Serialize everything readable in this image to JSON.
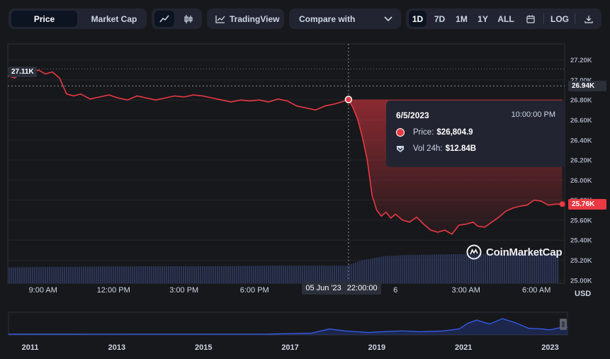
{
  "toolbar": {
    "metric_tabs": [
      {
        "label": "Price",
        "active": true
      },
      {
        "label": "Market Cap",
        "active": false
      }
    ],
    "chart_type_icons": [
      "line-chart-icon",
      "candlestick-icon"
    ],
    "tradingview_label": "TradingView",
    "compare_label": "Compare with",
    "ranges": [
      {
        "label": "1D",
        "active": true
      },
      {
        "label": "7D",
        "active": false
      },
      {
        "label": "1M",
        "active": false
      },
      {
        "label": "1Y",
        "active": false
      },
      {
        "label": "ALL",
        "active": false
      }
    ],
    "log_label": "LOG"
  },
  "tooltip": {
    "date": "6/5/2023",
    "time": "10:00:00 PM",
    "price_label": "Price:",
    "price_value": "$26,804.9",
    "vol_label": "Vol 24h:",
    "vol_value": "$12.84B"
  },
  "badges": {
    "high": "27.11K",
    "crosshair_price": "26.94K",
    "current_price": "25.76K",
    "crosshair_date": "05 Jun '23",
    "crosshair_time": "22:00:00"
  },
  "currency": "USD",
  "watermark": "CoinMarketCap",
  "colors": {
    "line": "#ea3943",
    "volume": "#2c3454",
    "nav_line": "#3861fb",
    "background": "#17181b",
    "panel": "#222531"
  },
  "chart_data": {
    "type": "line",
    "yaxis_ticks": [
      25.0,
      25.2,
      25.4,
      25.6,
      25.8,
      26.0,
      26.2,
      26.4,
      26.6,
      26.8,
      27.0,
      27.2
    ],
    "yaxis_tick_labels": [
      "25.00K",
      "25.20K",
      "25.40K",
      "25.60K",
      "25.80K",
      "26.00K",
      "26.20K",
      "26.40K",
      "26.60K",
      "26.80K",
      "27.00K",
      "27.20K"
    ],
    "ylim": [
      24.97,
      27.36
    ],
    "xlim": [
      7.5,
      31.2
    ],
    "x_tick_labels": [
      {
        "h": 9,
        "label": "9:00 AM"
      },
      {
        "h": 12,
        "label": "12:00 PM"
      },
      {
        "h": 15,
        "label": "3:00 PM"
      },
      {
        "h": 18,
        "label": "6:00 PM"
      },
      {
        "h": 24,
        "label": "6"
      },
      {
        "h": 27,
        "label": "3:00 AM"
      },
      {
        "h": 30,
        "label": "6:00 AM"
      }
    ],
    "crosshair_x": 22.0,
    "crosshair_y": 26.94,
    "highlight_x": 22.0,
    "highlight_y": 26.805,
    "high_value": 27.11,
    "last_value": 25.76,
    "reference_price": 26.805,
    "series": [
      {
        "x": [
          7.5,
          7.8,
          8.2,
          8.5,
          8.8,
          9.1,
          9.4,
          9.7,
          10.0,
          10.3,
          10.6,
          11.0,
          11.4,
          11.8,
          12.2,
          12.6,
          13.0,
          13.4,
          13.8,
          14.2,
          14.6,
          15.0,
          15.4,
          15.8,
          16.2,
          16.6,
          17.0,
          17.4,
          17.8,
          18.2,
          18.6,
          19.0,
          19.4,
          19.8,
          20.2,
          20.6,
          21.0,
          21.4,
          21.7,
          22.0,
          22.2,
          22.4,
          22.6,
          22.8,
          23.0,
          23.2,
          23.4,
          23.6,
          23.8,
          24.0,
          24.3,
          24.6,
          24.9,
          25.2,
          25.5,
          25.8,
          26.1,
          26.4,
          26.7,
          27.0,
          27.3,
          27.5,
          27.8,
          28.1,
          28.4,
          28.7,
          29.0,
          29.3,
          29.6,
          29.9,
          30.2,
          30.5,
          30.8,
          31.1
        ],
        "y": [
          27.04,
          27.02,
          27.08,
          27.06,
          27.1,
          27.06,
          27.08,
          27.02,
          26.86,
          26.84,
          26.86,
          26.81,
          26.83,
          26.85,
          26.82,
          26.8,
          26.84,
          26.82,
          26.8,
          26.82,
          26.84,
          26.83,
          26.85,
          26.84,
          26.82,
          26.8,
          26.78,
          26.8,
          26.79,
          26.8,
          26.78,
          26.81,
          26.79,
          26.74,
          26.72,
          26.7,
          26.74,
          26.76,
          26.78,
          26.805,
          26.72,
          26.6,
          26.42,
          26.2,
          25.85,
          25.7,
          25.64,
          25.68,
          25.62,
          25.66,
          25.6,
          25.58,
          25.63,
          25.56,
          25.5,
          25.48,
          25.5,
          25.46,
          25.55,
          25.56,
          25.58,
          25.54,
          25.53,
          25.58,
          25.63,
          25.69,
          25.72,
          25.74,
          25.75,
          25.8,
          25.79,
          25.75,
          25.76,
          25.76
        ]
      }
    ],
    "volume": {
      "x": [
        7.5,
        10,
        13,
        16,
        19,
        21.9,
        22.5,
        23.5,
        24.5,
        26,
        28,
        30,
        31.2
      ],
      "values": [
        0.28,
        0.29,
        0.3,
        0.3,
        0.31,
        0.31,
        0.4,
        0.48,
        0.5,
        0.51,
        0.52,
        0.53,
        0.53
      ]
    },
    "navigator": {
      "x_tick_labels": [
        {
          "year": 2011,
          "label": "2011"
        },
        {
          "year": 2013,
          "label": "2013"
        },
        {
          "year": 2015,
          "label": "2015"
        },
        {
          "year": 2017,
          "label": "2017"
        },
        {
          "year": 2019,
          "label": "2019"
        },
        {
          "year": 2021,
          "label": "2021"
        },
        {
          "year": 2023,
          "label": "2023"
        }
      ],
      "xlim": [
        2010.5,
        2023.4
      ],
      "series": {
        "x": [
          2010.5,
          2012,
          2013.5,
          2015,
          2016.5,
          2017.5,
          2017.9,
          2018.3,
          2018.8,
          2019.3,
          2019.6,
          2020.0,
          2020.5,
          2020.9,
          2021.1,
          2021.3,
          2021.6,
          2021.9,
          2022.2,
          2022.5,
          2022.8,
          2023.0,
          2023.2,
          2023.4
        ],
        "values": [
          0.0,
          0.0,
          0.01,
          0.01,
          0.01,
          0.06,
          0.3,
          0.18,
          0.1,
          0.16,
          0.19,
          0.14,
          0.18,
          0.3,
          0.62,
          0.8,
          0.58,
          0.88,
          0.65,
          0.34,
          0.3,
          0.25,
          0.36,
          0.4
        ]
      }
    }
  }
}
